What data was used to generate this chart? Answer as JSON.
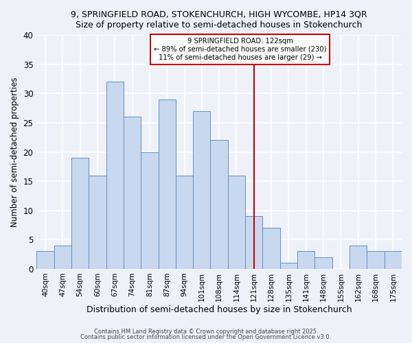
{
  "title1": "9, SPRINGFIELD ROAD, STOKENCHURCH, HIGH WYCOMBE, HP14 3QR",
  "title2": "Size of property relative to semi-detached houses in Stokenchurch",
  "xlabel": "Distribution of semi-detached houses by size in Stokenchurch",
  "ylabel": "Number of semi-detached properties",
  "categories": [
    "40sqm",
    "47sqm",
    "54sqm",
    "60sqm",
    "67sqm",
    "74sqm",
    "81sqm",
    "87sqm",
    "94sqm",
    "101sqm",
    "108sqm",
    "114sqm",
    "121sqm",
    "128sqm",
    "135sqm",
    "141sqm",
    "148sqm",
    "155sqm",
    "162sqm",
    "168sqm",
    "175sqm"
  ],
  "values": [
    3,
    4,
    19,
    16,
    32,
    26,
    20,
    29,
    16,
    27,
    22,
    16,
    9,
    7,
    1,
    3,
    2,
    0,
    4,
    3,
    3
  ],
  "bar_color": "#c8d8ee",
  "bar_edge_color": "#6090c0",
  "vline_x_index": 12,
  "vline_color": "#cc0000",
  "ylim": [
    0,
    40
  ],
  "yticks": [
    0,
    5,
    10,
    15,
    20,
    25,
    30,
    35,
    40
  ],
  "annotation_title": "9 SPRINGFIELD ROAD: 122sqm",
  "annotation_line1": "← 89% of semi-detached houses are smaller (230)",
  "annotation_line2": "11% of semi-detached houses are larger (29) →",
  "annotation_box_color": "#ffffff",
  "annotation_box_edge": "#cc0000",
  "bg_color": "#eef2f8",
  "grid_color": "#ffffff",
  "footer1": "Contains HM Land Registry data © Crown copyright and database right 2025.",
  "footer2": "Contains public sector information licensed under the Open Government Licence v3.0."
}
